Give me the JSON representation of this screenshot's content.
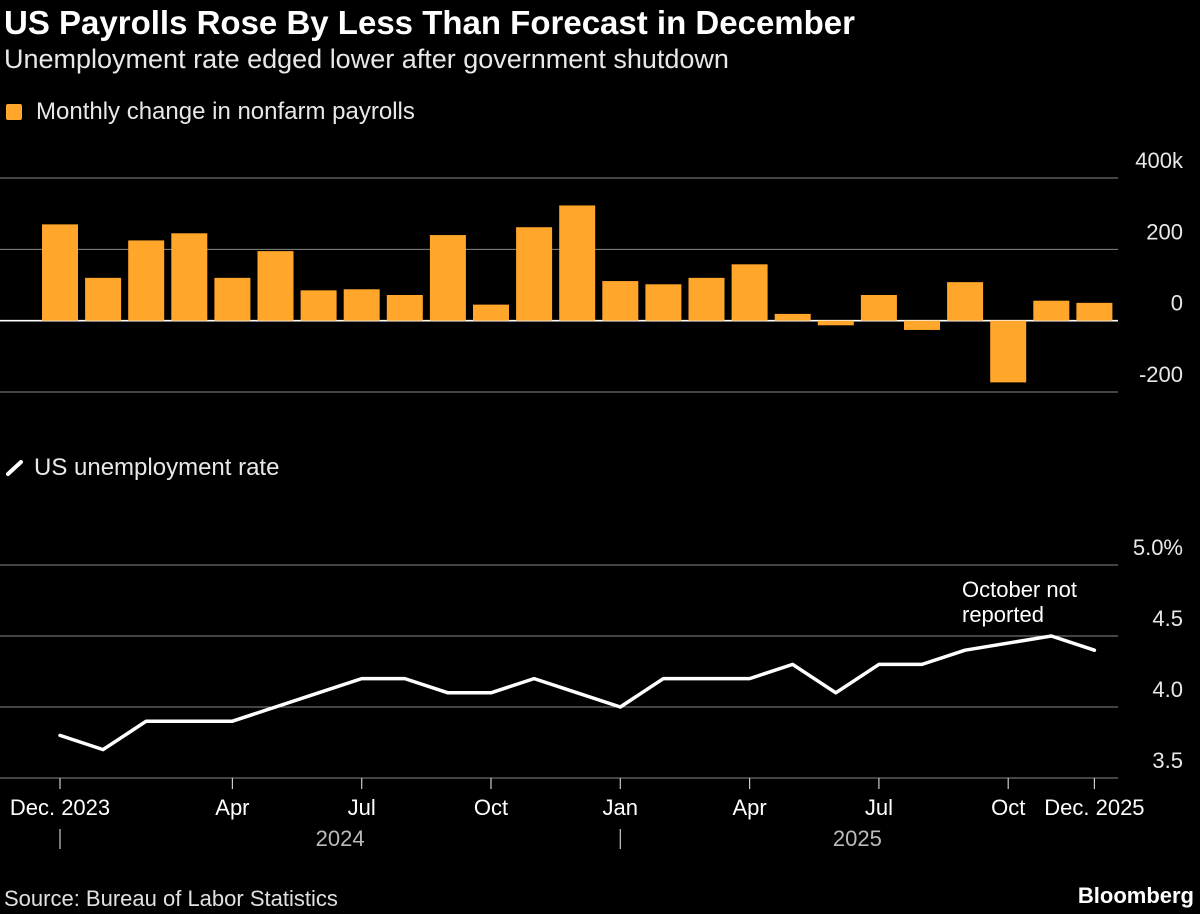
{
  "title": "US Payrolls Rose By Less Than Forecast in December",
  "subtitle": "Unemployment rate edged lower after government shutdown",
  "source": "Source: Bureau of Labor Statistics",
  "brand": "Bloomberg",
  "colors": {
    "bar": "#ffa62b",
    "line": "#ffffff",
    "grid": "#888888",
    "background": "#000000"
  },
  "chart_data": [
    {
      "type": "bar",
      "legend": "Monthly change in nonfarm payrolls",
      "ylim": [
        -200,
        400
      ],
      "yticks": [
        {
          "value": 400,
          "label": "400k"
        },
        {
          "value": 200,
          "label": "200"
        },
        {
          "value": 0,
          "label": "0"
        },
        {
          "value": -200,
          "label": "-200"
        }
      ],
      "categories": [
        "2023-12",
        "2024-01",
        "2024-02",
        "2024-03",
        "2024-04",
        "2024-05",
        "2024-06",
        "2024-07",
        "2024-08",
        "2024-09",
        "2024-10",
        "2024-11",
        "2024-12",
        "2025-01",
        "2025-02",
        "2025-03",
        "2025-04",
        "2025-05",
        "2025-06",
        "2025-07",
        "2025-08",
        "2025-09",
        "2025-10",
        "2025-11",
        "2025-12"
      ],
      "values": [
        270,
        120,
        225,
        245,
        120,
        195,
        85,
        88,
        72,
        240,
        45,
        262,
        323,
        111,
        102,
        120,
        158,
        19,
        -13,
        72,
        -26,
        108,
        -173,
        56,
        50
      ],
      "legend_position": "top-left",
      "grid": true
    },
    {
      "type": "line",
      "legend": "US unemployment rate",
      "ylim": [
        3.5,
        5.0
      ],
      "yticks": [
        {
          "value": 5.0,
          "label": "5.0%"
        },
        {
          "value": 4.5,
          "label": "4.5"
        },
        {
          "value": 4.0,
          "label": "4.0"
        },
        {
          "value": 3.5,
          "label": "3.5"
        }
      ],
      "x": [
        "2023-12",
        "2024-01",
        "2024-02",
        "2024-03",
        "2024-04",
        "2024-05",
        "2024-06",
        "2024-07",
        "2024-08",
        "2024-09",
        "2024-10",
        "2024-11",
        "2024-12",
        "2025-01",
        "2025-02",
        "2025-03",
        "2025-04",
        "2025-05",
        "2025-06",
        "2025-07",
        "2025-08",
        "2025-09",
        "2025-11",
        "2025-12"
      ],
      "values": [
        3.8,
        3.7,
        3.9,
        3.9,
        3.9,
        4.0,
        4.1,
        4.2,
        4.2,
        4.1,
        4.1,
        4.2,
        4.1,
        4.0,
        4.2,
        4.2,
        4.2,
        4.3,
        4.1,
        4.3,
        4.3,
        4.4,
        4.5,
        4.4
      ],
      "annotation": "October not reported",
      "annotation_lines": [
        "October not",
        "reported"
      ],
      "legend_position": "top-left",
      "grid": true
    }
  ],
  "x_axis": {
    "ticks": [
      {
        "month": "2023-12",
        "label": "Dec. 2023"
      },
      {
        "month": "2024-04",
        "label": "Apr"
      },
      {
        "month": "2024-07",
        "label": "Jul"
      },
      {
        "month": "2024-10",
        "label": "Oct"
      },
      {
        "month": "2025-01",
        "label": "Jan"
      },
      {
        "month": "2025-04",
        "label": "Apr"
      },
      {
        "month": "2025-07",
        "label": "Jul"
      },
      {
        "month": "2025-10",
        "label": "Oct"
      },
      {
        "month": "2025-12",
        "label": "Dec. 2025"
      }
    ],
    "year_labels": [
      {
        "label": "2024",
        "from": "2024-01",
        "to": "2024-12"
      },
      {
        "label": "2025",
        "from": "2025-01",
        "to": "2025-12"
      }
    ],
    "year_separators": [
      "2023-12",
      "2025-01"
    ]
  }
}
